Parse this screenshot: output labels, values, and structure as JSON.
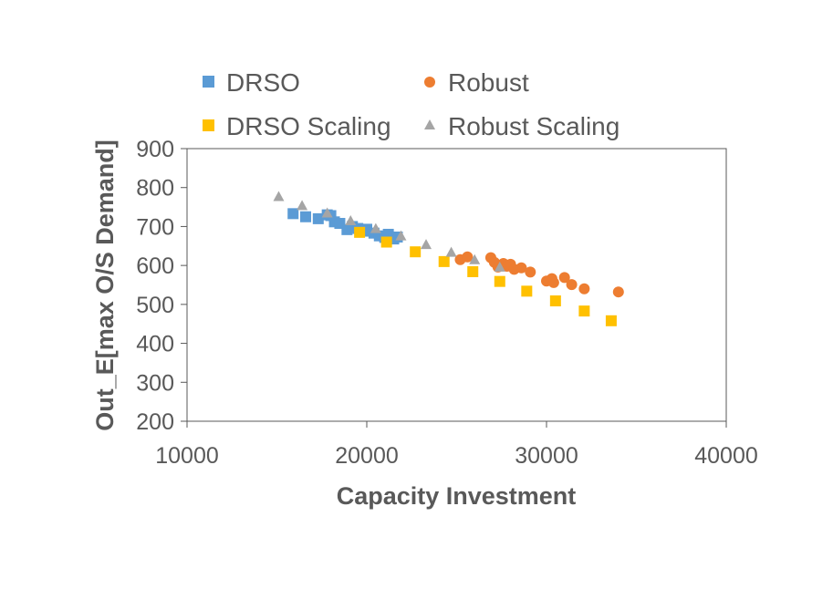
{
  "chart_data": {
    "type": "scatter",
    "title": "",
    "xlabel": "Capacity Investment",
    "ylabel": "Out_E[max O/S Demand]",
    "xlim": [
      10000,
      40000
    ],
    "ylim": [
      200,
      900
    ],
    "xticks": [
      10000,
      20000,
      30000,
      40000
    ],
    "yticks": [
      200,
      300,
      400,
      500,
      600,
      700,
      800,
      900
    ],
    "grid": false,
    "legend_position": "top",
    "series": [
      {
        "name": "DRSO",
        "marker": "square",
        "color": "#5B9BD5",
        "points": [
          [
            15900,
            733
          ],
          [
            16600,
            725
          ],
          [
            17300,
            720
          ],
          [
            17800,
            730
          ],
          [
            18000,
            728
          ],
          [
            18200,
            712
          ],
          [
            18500,
            708
          ],
          [
            18900,
            692
          ],
          [
            19200,
            700
          ],
          [
            19500,
            695
          ],
          [
            19800,
            688
          ],
          [
            20000,
            693
          ],
          [
            20400,
            683
          ],
          [
            20700,
            676
          ],
          [
            21000,
            672
          ],
          [
            21200,
            680
          ],
          [
            21500,
            668
          ],
          [
            21700,
            673
          ]
        ]
      },
      {
        "name": "Robust",
        "marker": "circle",
        "color": "#ED7D31",
        "points": [
          [
            25200,
            615
          ],
          [
            25600,
            622
          ],
          [
            26900,
            620
          ],
          [
            27100,
            608
          ],
          [
            27300,
            596
          ],
          [
            27600,
            605
          ],
          [
            27800,
            598
          ],
          [
            28000,
            603
          ],
          [
            28200,
            590
          ],
          [
            28600,
            594
          ],
          [
            29100,
            583
          ],
          [
            30000,
            560
          ],
          [
            30300,
            566
          ],
          [
            30400,
            556
          ],
          [
            31000,
            569
          ],
          [
            31400,
            551
          ],
          [
            32100,
            540
          ],
          [
            34000,
            532
          ]
        ]
      },
      {
        "name": "DRSO Scaling",
        "marker": "square",
        "color": "#FFC000",
        "points": [
          [
            19600,
            685
          ],
          [
            21100,
            660
          ],
          [
            22700,
            635
          ],
          [
            24300,
            610
          ],
          [
            25900,
            584
          ],
          [
            27400,
            559
          ],
          [
            28900,
            534
          ],
          [
            30500,
            509
          ],
          [
            32100,
            483
          ],
          [
            33600,
            458
          ]
        ]
      },
      {
        "name": "Robust Scaling",
        "marker": "triangle",
        "color": "#A5A5A5",
        "points": [
          [
            15100,
            777
          ],
          [
            16400,
            754
          ],
          [
            17800,
            735
          ],
          [
            19100,
            715
          ],
          [
            20500,
            695
          ],
          [
            21900,
            676
          ],
          [
            23300,
            654
          ],
          [
            24700,
            634
          ],
          [
            26000,
            615
          ],
          [
            27400,
            596
          ]
        ]
      }
    ]
  }
}
